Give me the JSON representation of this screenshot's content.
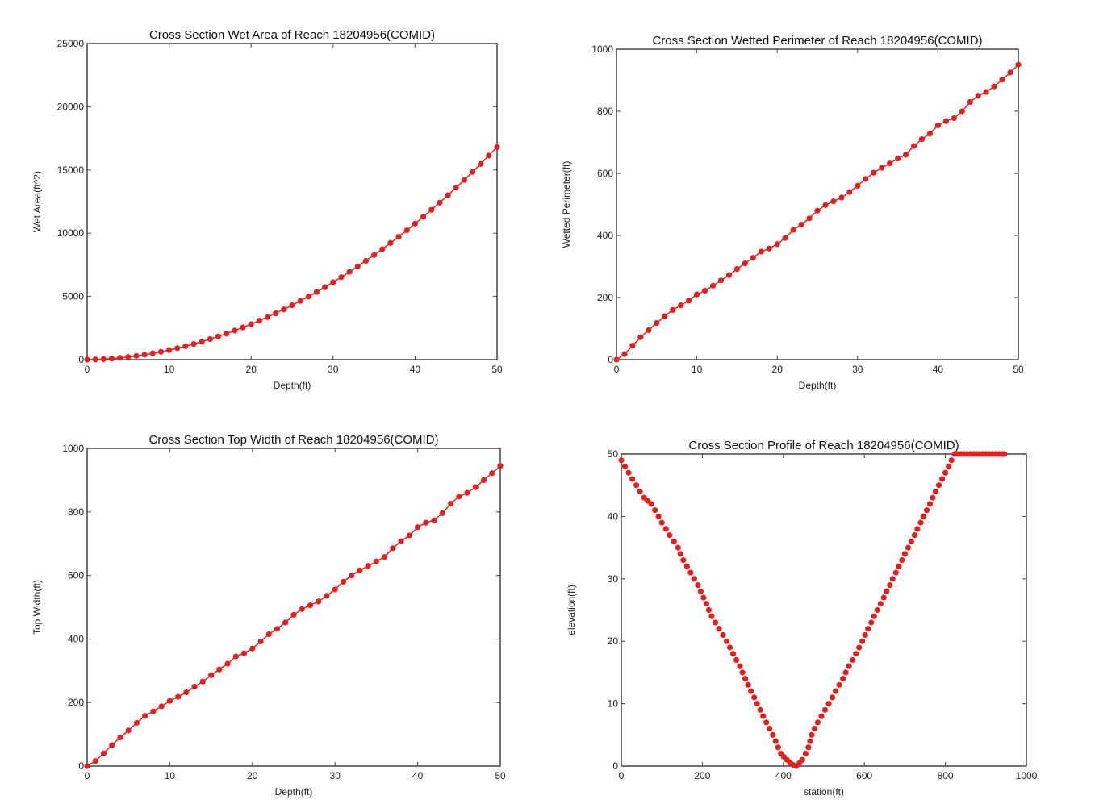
{
  "colors": {
    "marker": "#dd2222",
    "line": "#dd2222",
    "frame": "#444444"
  },
  "chart_data": [
    {
      "type": "line",
      "title": "Cross Section Wet Area of Reach 18204956(COMID)",
      "xlabel": "Depth(ft)",
      "ylabel": "Wet Area(ft^2)",
      "xlim": [
        0,
        50
      ],
      "ylim": [
        0,
        25000
      ],
      "xticks": [
        0,
        10,
        20,
        30,
        40,
        50
      ],
      "yticks": [
        0,
        5000,
        10000,
        15000,
        20000,
        25000
      ],
      "x": [
        0,
        1,
        2,
        3,
        4,
        5,
        6,
        7,
        8,
        9,
        10,
        11,
        12,
        13,
        14,
        15,
        16,
        17,
        18,
        19,
        20,
        21,
        22,
        23,
        24,
        25,
        26,
        27,
        28,
        29,
        30,
        31,
        32,
        33,
        34,
        35,
        36,
        37,
        38,
        39,
        40,
        41,
        42,
        43,
        44,
        45,
        46,
        47,
        48,
        49,
        50
      ],
      "y": [
        0,
        14,
        40,
        82,
        140,
        210,
        295,
        390,
        500,
        620,
        755,
        905,
        1065,
        1240,
        1425,
        1625,
        1835,
        2060,
        2295,
        2545,
        2805,
        3080,
        3365,
        3665,
        3975,
        4300,
        4640,
        4990,
        5355,
        5730,
        6120,
        6525,
        6940,
        7370,
        7815,
        8270,
        8740,
        9225,
        9720,
        10230,
        10755,
        11295,
        11850,
        12420,
        13000,
        13600,
        14210,
        14840,
        15480,
        16140,
        16810
      ]
    },
    {
      "type": "line",
      "title": "Cross Section Wetted Perimeter of Reach 18204956(COMID)",
      "xlabel": "Depth(ft)",
      "ylabel": "Wetted Perimeter(ft)",
      "xlim": [
        0,
        50
      ],
      "ylim": [
        0,
        1000
      ],
      "xticks": [
        0,
        10,
        20,
        30,
        40,
        50
      ],
      "yticks": [
        0,
        200,
        400,
        600,
        800,
        1000
      ],
      "x": [
        0,
        1,
        2,
        3,
        4,
        5,
        6,
        7,
        8,
        9,
        10,
        11,
        12,
        13,
        14,
        15,
        16,
        17,
        18,
        19,
        20,
        21,
        22,
        23,
        24,
        25,
        26,
        27,
        28,
        29,
        30,
        31,
        32,
        33,
        34,
        35,
        36,
        37,
        38,
        39,
        40,
        41,
        42,
        43,
        44,
        45,
        46,
        47,
        48,
        49,
        50
      ],
      "y": [
        0,
        18,
        45,
        72,
        95,
        118,
        140,
        160,
        175,
        190,
        210,
        222,
        238,
        255,
        272,
        292,
        310,
        328,
        348,
        358,
        372,
        392,
        418,
        435,
        455,
        480,
        498,
        510,
        522,
        540,
        560,
        582,
        602,
        618,
        632,
        648,
        660,
        688,
        710,
        728,
        755,
        768,
        778,
        800,
        830,
        850,
        862,
        880,
        902,
        925,
        950
      ]
    },
    {
      "type": "line",
      "title": "Cross Section Top Width of Reach 18204956(COMID)",
      "xlabel": "Depth(ft)",
      "ylabel": "Top Width(ft)",
      "xlim": [
        0,
        50
      ],
      "ylim": [
        0,
        1000
      ],
      "xticks": [
        0,
        10,
        20,
        30,
        40,
        50
      ],
      "yticks": [
        0,
        200,
        400,
        600,
        800,
        1000
      ],
      "x": [
        0,
        1,
        2,
        3,
        4,
        5,
        6,
        7,
        8,
        9,
        10,
        11,
        12,
        13,
        14,
        15,
        16,
        17,
        18,
        19,
        20,
        21,
        22,
        23,
        24,
        25,
        26,
        27,
        28,
        29,
        30,
        31,
        32,
        33,
        34,
        35,
        36,
        37,
        38,
        39,
        40,
        41,
        42,
        43,
        44,
        45,
        46,
        47,
        48,
        49,
        50
      ],
      "y": [
        0,
        16,
        40,
        66,
        90,
        112,
        136,
        158,
        172,
        188,
        205,
        218,
        232,
        250,
        266,
        286,
        304,
        322,
        345,
        355,
        370,
        392,
        415,
        432,
        452,
        476,
        494,
        506,
        518,
        536,
        556,
        580,
        600,
        616,
        630,
        644,
        658,
        686,
        708,
        726,
        752,
        766,
        774,
        796,
        826,
        848,
        860,
        878,
        900,
        922,
        945
      ]
    },
    {
      "type": "scatter",
      "title": "Cross Section Profile of Reach 18204956(COMID)",
      "xlabel": "station(ft)",
      "ylabel": "elevation(ft)",
      "xlim": [
        0,
        1000
      ],
      "ylim": [
        0,
        50
      ],
      "xticks": [
        0,
        200,
        400,
        600,
        800,
        1000
      ],
      "yticks": [
        0,
        10,
        20,
        30,
        40,
        50
      ],
      "x": [
        0,
        9,
        18,
        27,
        37,
        46,
        56,
        65,
        74,
        83,
        92,
        100,
        110,
        119,
        130,
        140,
        146,
        153,
        162,
        171,
        180,
        189,
        196,
        203,
        210,
        216,
        223,
        232,
        241,
        251,
        260,
        268,
        276,
        284,
        293,
        299,
        306,
        313,
        320,
        328,
        335,
        343,
        350,
        358,
        366,
        374,
        381,
        387,
        394,
        401,
        409,
        417,
        424,
        432,
        440,
        447,
        455,
        462,
        466,
        470,
        477,
        485,
        494,
        503,
        512,
        521,
        529,
        538,
        547,
        554,
        562,
        571,
        579,
        587,
        595,
        602,
        609,
        617,
        624,
        632,
        640,
        648,
        655,
        663,
        670,
        678,
        685,
        693,
        700,
        708,
        716,
        724,
        731,
        739,
        746,
        754,
        762,
        769,
        776,
        784,
        792,
        800,
        808,
        815,
        823,
        831,
        838,
        846,
        854,
        862,
        870,
        877,
        884,
        892,
        900,
        908,
        916,
        924,
        932,
        940,
        946
      ],
      "y": [
        49,
        48,
        47,
        46,
        45,
        44,
        43,
        42.5,
        42,
        41,
        40,
        39,
        38,
        37,
        36,
        35,
        34,
        33,
        32,
        31,
        30,
        29,
        28,
        27,
        26,
        25,
        24,
        23,
        22,
        21,
        20,
        19,
        18,
        17,
        16,
        15,
        14,
        13,
        12,
        11,
        10,
        9,
        8,
        7,
        6,
        5,
        4,
        3,
        2,
        1.5,
        1,
        0.5,
        0.2,
        0,
        0.5,
        1,
        2,
        3,
        4,
        5,
        6,
        7,
        8,
        9,
        10,
        11,
        12,
        13,
        14,
        15,
        16,
        17,
        18,
        19,
        20,
        21,
        22,
        23,
        24,
        25,
        26,
        27,
        28,
        29,
        30,
        31,
        32,
        33,
        34,
        35,
        36,
        37,
        38,
        39,
        40,
        41,
        42,
        43,
        44,
        45,
        46,
        47,
        48,
        49,
        50,
        50,
        50,
        50,
        50,
        50,
        50,
        50,
        50,
        50,
        50,
        50,
        50,
        50,
        50,
        50,
        50
      ]
    }
  ]
}
